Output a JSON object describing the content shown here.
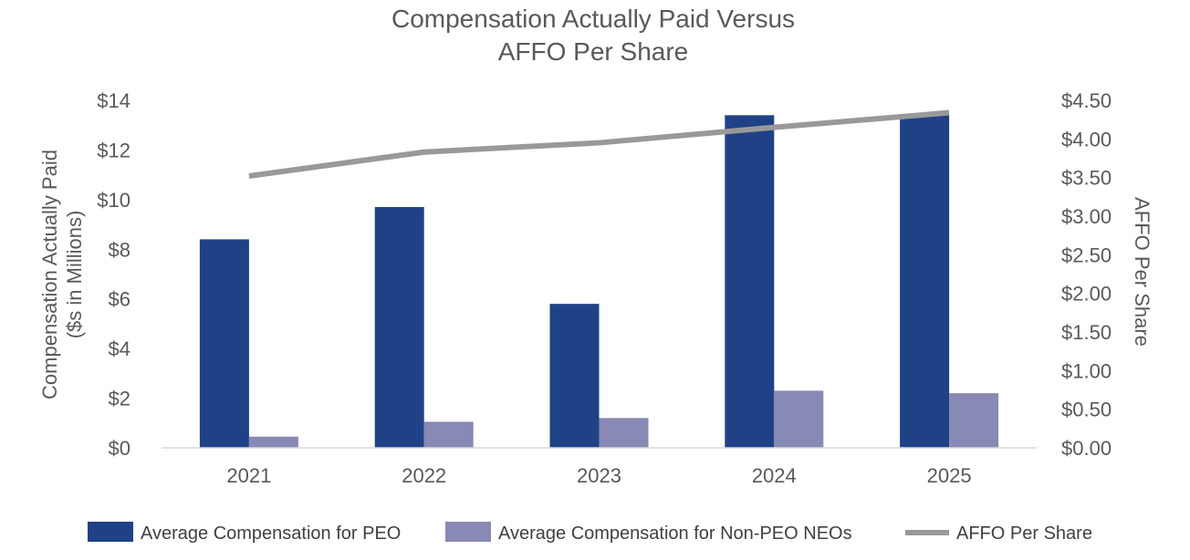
{
  "chart_data": {
    "type": "bar",
    "title": [
      "Compensation Actually Paid Versus",
      "AFFO Per Share"
    ],
    "ylabel_left": [
      "Compensation Actually Paid",
      "($s in Millions)"
    ],
    "ylabel_right": "AFFO Per Share",
    "categories": [
      "2021",
      "2022",
      "2023",
      "2024",
      "2025"
    ],
    "ylim_left": [
      0,
      14
    ],
    "ylim_right": [
      0,
      4.5
    ],
    "yticks_left": [
      "$0",
      "$2",
      "$4",
      "$6",
      "$8",
      "$10",
      "$12",
      "$14"
    ],
    "yticks_right": [
      "$0.00",
      "$0.50",
      "$1.00",
      "$1.50",
      "$2.00",
      "$2.50",
      "$3.00",
      "$3.50",
      "$4.00",
      "$4.50"
    ],
    "grid": false,
    "legend_position": "bottom",
    "series": [
      {
        "name": "Average Compensation for PEO",
        "type": "bar",
        "axis": "left",
        "color": "#1f4287",
        "values": [
          8.4,
          9.7,
          5.8,
          13.4,
          13.4
        ]
      },
      {
        "name": "Average Compensation for Non-PEO NEOs",
        "type": "bar",
        "axis": "left",
        "color": "#8889b4",
        "values": [
          0.45,
          1.05,
          1.2,
          2.3,
          2.2
        ]
      },
      {
        "name": "AFFO Per Share",
        "type": "line",
        "axis": "right",
        "color": "#999999",
        "values": [
          3.52,
          3.83,
          3.95,
          4.15,
          4.34
        ]
      }
    ]
  }
}
